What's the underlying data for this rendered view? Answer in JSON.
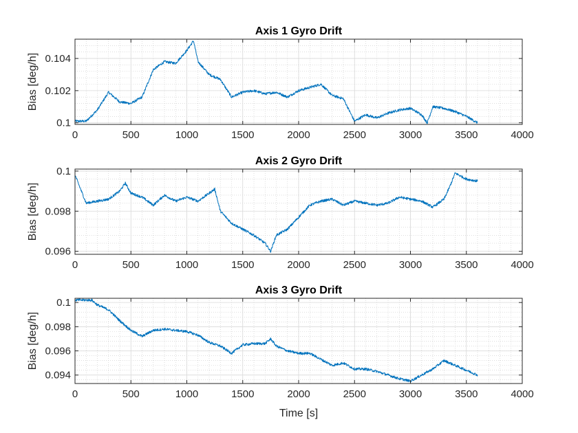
{
  "colors": {
    "line": "#0072BD",
    "axis": "#262626",
    "grid": "#d9d9d9",
    "minor_grid": "#c8c8c8"
  },
  "chart_data": [
    {
      "type": "line",
      "title": "Axis 1 Gyro Drift",
      "ylabel": "Bias [deg/h]",
      "xlabel": "",
      "xlim": [
        0,
        4000
      ],
      "ylim": [
        0.0999,
        0.1052
      ],
      "x_ticks": [
        "0",
        "500",
        "1000",
        "1500",
        "2000",
        "2500",
        "3000",
        "3500",
        "4000"
      ],
      "y_ticks": [
        {
          "value": 0.1,
          "label": "0.1"
        },
        {
          "value": 0.102,
          "label": "0.102"
        },
        {
          "value": 0.104,
          "label": "0.104"
        }
      ],
      "grid": true,
      "series": [
        {
          "x": [
            0,
            100,
            200,
            300,
            400,
            500,
            600,
            700,
            800,
            900,
            1000,
            1060,
            1100,
            1200,
            1300,
            1400,
            1500,
            1600,
            1700,
            1800,
            1900,
            2000,
            2100,
            2200,
            2300,
            2400,
            2500,
            2600,
            2700,
            2800,
            2900,
            3000,
            3100,
            3150,
            3200,
            3300,
            3400,
            3500,
            3600
          ],
          "y": [
            0.1001,
            0.1001,
            0.1008,
            0.1019,
            0.1013,
            0.1012,
            0.1016,
            0.1033,
            0.1038,
            0.1037,
            0.1045,
            0.1051,
            0.1038,
            0.103,
            0.1027,
            0.1016,
            0.1019,
            0.102,
            0.1018,
            0.1019,
            0.1016,
            0.102,
            0.1022,
            0.1024,
            0.1017,
            0.1015,
            0.1001,
            0.1005,
            0.1003,
            0.1006,
            0.1008,
            0.1009,
            0.1005,
            0.1,
            0.101,
            0.1009,
            0.1007,
            0.1004,
            0.1
          ]
        }
      ]
    },
    {
      "type": "line",
      "title": "Axis 2 Gyro Drift",
      "ylabel": "Bias [deg/h]",
      "xlabel": "",
      "xlim": [
        0,
        4000
      ],
      "ylim": [
        0.09585,
        0.1001
      ],
      "x_ticks": [
        "0",
        "500",
        "1000",
        "1500",
        "2000",
        "2500",
        "3000",
        "3500",
        "4000"
      ],
      "y_ticks": [
        {
          "value": 0.096,
          "label": "0.096"
        },
        {
          "value": 0.098,
          "label": "0.098"
        },
        {
          "value": 0.1,
          "label": "0.1"
        }
      ],
      "grid": true,
      "series": [
        {
          "x": [
            0,
            100,
            200,
            300,
            400,
            450,
            500,
            600,
            700,
            800,
            900,
            1000,
            1100,
            1200,
            1250,
            1300,
            1400,
            1500,
            1600,
            1700,
            1750,
            1800,
            1900,
            2000,
            2100,
            2200,
            2300,
            2400,
            2500,
            2600,
            2700,
            2800,
            2900,
            3000,
            3100,
            3200,
            3300,
            3350,
            3400,
            3500,
            3600
          ],
          "y": [
            0.0998,
            0.0984,
            0.0985,
            0.0986,
            0.099,
            0.0994,
            0.0989,
            0.0987,
            0.0983,
            0.0988,
            0.0985,
            0.0987,
            0.0985,
            0.0989,
            0.0991,
            0.098,
            0.0974,
            0.0971,
            0.0968,
            0.0964,
            0.096,
            0.0968,
            0.0971,
            0.0977,
            0.0983,
            0.0985,
            0.0986,
            0.0983,
            0.0985,
            0.0984,
            0.0983,
            0.0984,
            0.0987,
            0.0986,
            0.0985,
            0.0982,
            0.0986,
            0.0992,
            0.0999,
            0.0996,
            0.0995
          ]
        }
      ]
    },
    {
      "type": "line",
      "title": "Axis 3 Gyro Drift",
      "ylabel": "Bias [deg/h]",
      "xlabel": "Time [s]",
      "xlim": [
        0,
        4000
      ],
      "ylim": [
        0.0933,
        0.10035
      ],
      "x_ticks": [
        "0",
        "500",
        "1000",
        "1500",
        "2000",
        "2500",
        "3000",
        "3500",
        "4000"
      ],
      "y_ticks": [
        {
          "value": 0.094,
          "label": "0.094"
        },
        {
          "value": 0.096,
          "label": "0.096"
        },
        {
          "value": 0.098,
          "label": "0.098"
        },
        {
          "value": 0.1,
          "label": "0.1"
        }
      ],
      "grid": true,
      "series": [
        {
          "x": [
            0,
            100,
            150,
            200,
            300,
            400,
            500,
            600,
            700,
            800,
            900,
            1000,
            1100,
            1200,
            1300,
            1400,
            1500,
            1600,
            1700,
            1750,
            1800,
            1900,
            2000,
            2100,
            2200,
            2300,
            2400,
            2500,
            2600,
            2700,
            2800,
            2900,
            3000,
            3100,
            3200,
            3300,
            3400,
            3500,
            3600
          ],
          "y": [
            0.1002,
            0.1002,
            0.1002,
            0.0998,
            0.0994,
            0.0985,
            0.0977,
            0.0972,
            0.0977,
            0.0978,
            0.0977,
            0.0976,
            0.0973,
            0.0967,
            0.0964,
            0.0958,
            0.0965,
            0.0966,
            0.0966,
            0.097,
            0.0964,
            0.096,
            0.0958,
            0.0958,
            0.0953,
            0.0948,
            0.095,
            0.0945,
            0.0945,
            0.0943,
            0.094,
            0.0937,
            0.0935,
            0.094,
            0.0945,
            0.0952,
            0.0948,
            0.0944,
            0.094
          ]
        }
      ]
    }
  ]
}
